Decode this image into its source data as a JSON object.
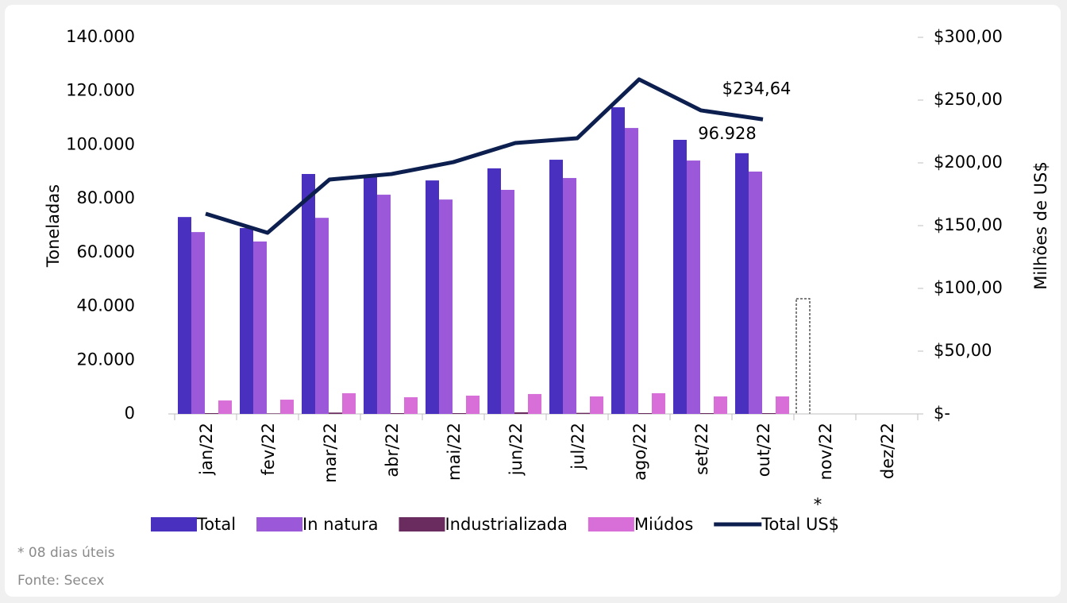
{
  "chart_data": {
    "type": "bar_line",
    "y_label": "Toneladas",
    "y2_label": "Milhões de US$",
    "annotation": "*",
    "footnote": "* 08 dias úteis",
    "source": "Fonte: Secex",
    "categories": [
      "jan/22",
      "fev/22",
      "mar/22",
      "abr/22",
      "mai/22",
      "jun/22",
      "jul/22",
      "ago/22",
      "set/22",
      "out/22",
      "nov/22",
      "dez/22"
    ],
    "ylim": [
      0,
      140000
    ],
    "yticks": [
      0,
      {
        "value": 20000,
        "label": "20.000"
      },
      {
        "value": 40000,
        "label": "40.000"
      },
      {
        "value": 60000,
        "label": "60.000"
      },
      {
        "value": 80000,
        "label": "80.000"
      },
      {
        "value": 100000,
        "label": "100.000"
      },
      {
        "value": 120000,
        "label": "120.000"
      },
      {
        "value": 140000,
        "label": "140.000"
      }
    ],
    "y2lim": [
      0,
      300
    ],
    "y2ticks": [
      {
        "value": 0,
        "label": "$-"
      },
      {
        "value": 50,
        "label": "$50,00"
      },
      {
        "value": 100,
        "label": "$100,00"
      },
      {
        "value": 150,
        "label": "$150,00"
      },
      {
        "value": 200,
        "label": "$200,00"
      },
      {
        "value": 250,
        "label": "$250,00"
      },
      {
        "value": 300,
        "label": "$300,00"
      }
    ],
    "series": [
      {
        "name": "Total",
        "type": "bar",
        "color": "#4a30bf",
        "values": [
          73200,
          69100,
          89200,
          88300,
          86800,
          91300,
          94500,
          114000,
          101900,
          96928,
          null,
          null
        ],
        "value_labels": [
          null,
          null,
          null,
          null,
          null,
          null,
          null,
          null,
          null,
          "96.928",
          null,
          null
        ]
      },
      {
        "name": "In natura",
        "type": "bar",
        "color": "#9b58d8",
        "values": [
          67600,
          64100,
          72900,
          81500,
          79700,
          83300,
          87700,
          106300,
          94200,
          90100,
          null,
          null
        ]
      },
      {
        "name": "Industrializada",
        "type": "bar",
        "color": "#6a2c5e",
        "values": [
          300,
          200,
          500,
          300,
          300,
          600,
          400,
          300,
          300,
          300,
          null,
          null
        ]
      },
      {
        "name": "Miúdos",
        "type": "bar",
        "color": "#d86fd8",
        "values": [
          5000,
          5300,
          7700,
          6200,
          6800,
          7400,
          6500,
          7700,
          6500,
          6500,
          null,
          null
        ]
      },
      {
        "name": "Total US$",
        "type": "line",
        "axis": "y2",
        "color": "#0d1f4f",
        "values": [
          159.5,
          144.3,
          186.7,
          191.1,
          200.6,
          215.8,
          219.6,
          266.5,
          241.8,
          234.64,
          null,
          null
        ],
        "value_labels": [
          null,
          null,
          null,
          null,
          null,
          null,
          null,
          null,
          null,
          "$234,64",
          null,
          null
        ]
      }
    ]
  }
}
